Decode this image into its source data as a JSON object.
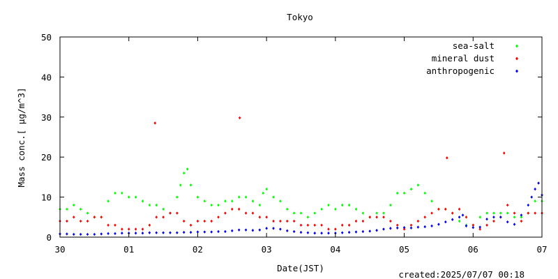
{
  "footer": {
    "created": "created:2025/07/07 00:18"
  },
  "chart_data": {
    "type": "scatter",
    "title": "Tokyo",
    "xlabel": "Date(JST)",
    "ylabel": "Mass conc.[ μg/m^3]",
    "xlim": [
      0,
      7
    ],
    "ylim": [
      0,
      50
    ],
    "x_ticks": [
      {
        "value": 0,
        "label": "30"
      },
      {
        "value": 1,
        "label": "01"
      },
      {
        "value": 2,
        "label": "02"
      },
      {
        "value": 3,
        "label": "03"
      },
      {
        "value": 4,
        "label": "04"
      },
      {
        "value": 5,
        "label": "05"
      },
      {
        "value": 6,
        "label": "06"
      },
      {
        "value": 7,
        "label": "07"
      }
    ],
    "y_ticks": [
      0,
      10,
      20,
      30,
      40,
      50
    ],
    "grid": false,
    "legend_position": "top-right",
    "series": [
      {
        "name": "sea-salt",
        "color": "#00ff00",
        "x": [
          0.0,
          0.1,
          0.2,
          0.3,
          0.4,
          0.5,
          0.6,
          0.7,
          0.8,
          0.9,
          1.0,
          1.1,
          1.2,
          1.3,
          1.4,
          1.5,
          1.6,
          1.7,
          1.75,
          1.8,
          1.85,
          1.9,
          2.0,
          2.1,
          2.2,
          2.3,
          2.4,
          2.5,
          2.6,
          2.7,
          2.8,
          2.9,
          2.95,
          3.0,
          3.1,
          3.2,
          3.3,
          3.4,
          3.5,
          3.6,
          3.7,
          3.8,
          3.9,
          4.0,
          4.1,
          4.2,
          4.3,
          4.4,
          4.5,
          4.6,
          4.7,
          4.8,
          4.9,
          5.0,
          5.1,
          5.2,
          5.3,
          5.4,
          5.5,
          5.6,
          5.7,
          5.8,
          5.9,
          6.0,
          6.1,
          6.2,
          6.3,
          6.4,
          6.5,
          6.6,
          6.7,
          6.8,
          6.9,
          7.0
        ],
        "y": [
          7,
          7,
          8,
          7,
          6,
          5,
          5,
          9,
          11,
          11,
          10,
          10,
          9,
          8,
          8,
          7,
          6,
          10,
          13,
          16,
          17,
          13,
          10,
          9,
          8,
          8,
          9,
          9,
          10,
          10,
          9,
          8,
          11,
          12,
          10,
          9,
          7,
          6,
          6,
          5,
          6,
          7,
          8,
          7,
          8,
          8,
          7,
          6,
          5,
          6,
          6,
          8,
          11,
          11,
          12,
          13,
          11,
          9,
          7,
          7,
          6,
          4,
          3,
          3,
          5,
          6,
          6,
          6,
          6,
          5,
          5,
          6,
          9,
          9
        ]
      },
      {
        "name": "mineral dust",
        "color": "#ff0000",
        "x": [
          0.0,
          0.1,
          0.2,
          0.3,
          0.4,
          0.5,
          0.6,
          0.7,
          0.8,
          0.9,
          1.0,
          1.1,
          1.2,
          1.3,
          1.38,
          1.4,
          1.5,
          1.6,
          1.7,
          1.8,
          1.9,
          2.0,
          2.1,
          2.2,
          2.3,
          2.4,
          2.5,
          2.6,
          2.61,
          2.7,
          2.8,
          2.9,
          3.0,
          3.1,
          3.2,
          3.3,
          3.4,
          3.5,
          3.6,
          3.7,
          3.8,
          3.9,
          4.0,
          4.1,
          4.2,
          4.3,
          4.4,
          4.5,
          4.6,
          4.7,
          4.8,
          4.9,
          5.0,
          5.1,
          5.2,
          5.3,
          5.4,
          5.5,
          5.6,
          5.62,
          5.7,
          5.8,
          5.9,
          6.0,
          6.1,
          6.2,
          6.3,
          6.4,
          6.45,
          6.5,
          6.6,
          6.7,
          6.8,
          6.9,
          7.0
        ],
        "y": [
          4,
          4,
          5,
          4,
          4,
          5,
          5,
          3,
          3,
          2,
          2,
          2,
          2,
          3,
          28.5,
          5,
          5,
          6,
          6,
          4,
          3,
          4,
          4,
          4,
          5,
          6,
          7,
          7,
          29.8,
          6,
          6,
          5,
          5,
          4,
          4,
          4,
          4,
          3,
          3,
          3,
          3,
          2,
          2,
          3,
          3,
          4,
          4,
          5,
          5,
          5,
          4,
          3,
          2,
          3,
          4,
          5,
          6,
          7,
          7,
          19.8,
          6,
          7,
          5,
          3,
          2,
          3,
          4,
          5,
          21,
          8,
          6,
          4,
          6,
          6,
          6
        ]
      },
      {
        "name": "anthropogenic",
        "color": "#0000ff",
        "x": [
          0.0,
          0.1,
          0.2,
          0.3,
          0.4,
          0.5,
          0.6,
          0.7,
          0.8,
          0.9,
          1.0,
          1.1,
          1.2,
          1.3,
          1.4,
          1.5,
          1.6,
          1.7,
          1.8,
          1.9,
          2.0,
          2.1,
          2.2,
          2.3,
          2.4,
          2.5,
          2.6,
          2.7,
          2.8,
          2.9,
          3.0,
          3.1,
          3.2,
          3.3,
          3.4,
          3.5,
          3.6,
          3.7,
          3.8,
          3.9,
          4.0,
          4.1,
          4.2,
          4.3,
          4.4,
          4.5,
          4.6,
          4.7,
          4.8,
          4.9,
          5.0,
          5.1,
          5.2,
          5.3,
          5.4,
          5.5,
          5.6,
          5.7,
          5.8,
          5.85,
          5.9,
          6.0,
          6.1,
          6.2,
          6.3,
          6.4,
          6.5,
          6.6,
          6.7,
          6.8,
          6.85,
          6.9,
          6.95,
          7.0
        ],
        "y": [
          0.8,
          0.8,
          0.7,
          0.7,
          0.7,
          0.7,
          0.8,
          0.9,
          0.9,
          1.0,
          1.0,
          1.0,
          1.0,
          1.1,
          1.1,
          1.1,
          1.1,
          1.1,
          1.2,
          1.2,
          1.3,
          1.3,
          1.3,
          1.4,
          1.4,
          1.6,
          1.8,
          1.8,
          1.7,
          1.8,
          2.2,
          2.2,
          2.0,
          1.6,
          1.4,
          1.2,
          1.1,
          1.0,
          1.0,
          1.0,
          1.0,
          1.1,
          1.2,
          1.3,
          1.4,
          1.5,
          1.7,
          2.0,
          2.2,
          2.3,
          2.4,
          2.3,
          2.5,
          2.6,
          2.8,
          3.2,
          3.8,
          4.4,
          5.0,
          5.5,
          2.8,
          2.4,
          2.5,
          4.5,
          5.0,
          5.0,
          3.8,
          3.2,
          5.5,
          8.0,
          10.0,
          12.0,
          13.5,
          10.5
        ]
      }
    ]
  }
}
